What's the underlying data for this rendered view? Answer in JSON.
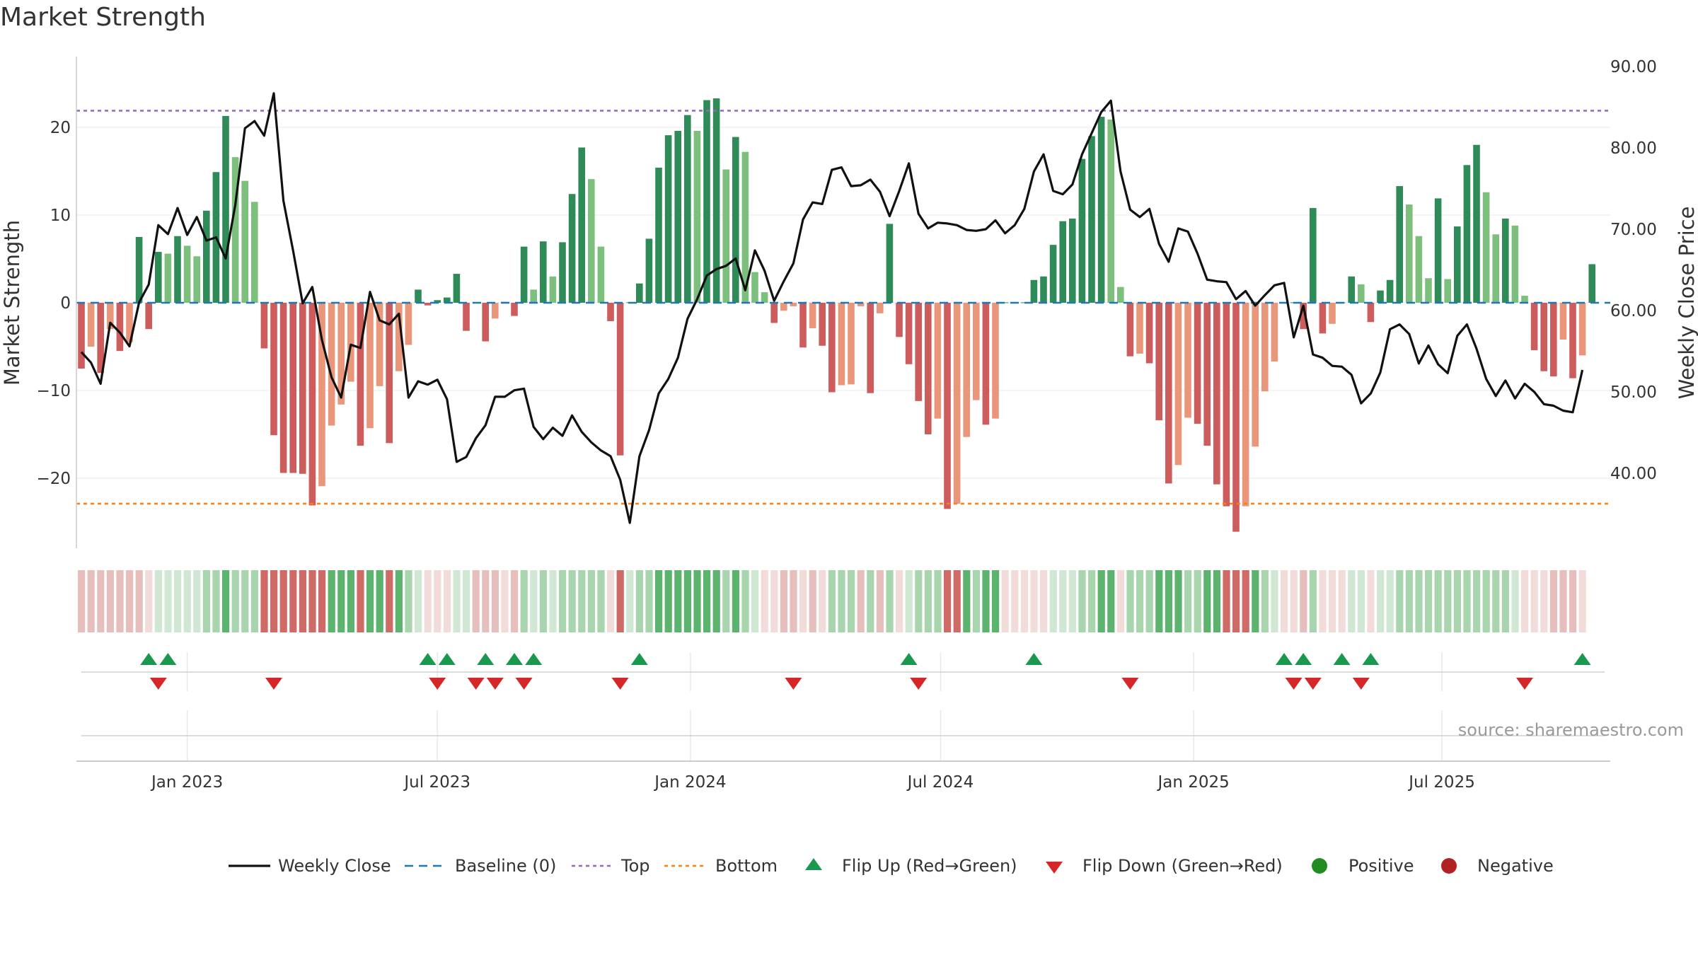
{
  "title": "Market Strength",
  "source": "source: sharemaestro.com",
  "colors": {
    "strong_green": "#2e8b57",
    "light_green": "#7dbf7d",
    "strong_red": "#cd5c5c",
    "light_red": "#e9967a",
    "price_line": "#111111",
    "baseline": "#1f77b4",
    "top_line": "#9467bd",
    "bottom_line": "#ff7f0e",
    "flip_up": "#1a9850",
    "flip_down": "#d62728",
    "positive": "#228b22",
    "negative": "#b22222",
    "grid": "#e8e8e8"
  },
  "chart_data": {
    "type": "bar",
    "title": "Market Strength",
    "ylabel_left": "Market Strength",
    "ylabel_right": "Weekly Close Price",
    "ylim_left": [
      -28,
      28
    ],
    "ylim_right": [
      29.6,
      92.6
    ],
    "left_ticks": [
      "20",
      "10",
      "0",
      "−10",
      "−20"
    ],
    "left_tick_values": [
      20,
      10,
      0,
      -10,
      -20
    ],
    "right_ticks": [
      "90.00",
      "80.00",
      "70.00",
      "60.00",
      "50.00",
      "40.00"
    ],
    "right_tick_values": [
      90,
      80,
      70,
      60,
      50,
      40
    ],
    "x_tick_labels": [
      "Jan 2023",
      "Jul 2023",
      "Jan 2024",
      "Jul 2024",
      "Jan 2025",
      "Jul 2025"
    ],
    "x_tick_week_index": [
      11.0,
      37.0,
      63.3,
      89.3,
      115.6,
      141.4
    ],
    "top_level": 21.9,
    "bottom_level": -22.9,
    "strength": [
      -7.5,
      -5,
      -8,
      -3,
      -5.5,
      -4.5,
      7.5,
      -3,
      5.8,
      5.6,
      7.6,
      6.5,
      5.3,
      10.5,
      14.9,
      21.3,
      16.6,
      13.9,
      11.5,
      -5.2,
      -15.1,
      -19.4,
      -19.4,
      -19.5,
      -23.1,
      -20.9,
      -14,
      -11.6,
      -9,
      -16.3,
      -14.3,
      -9.5,
      -16,
      -7.8,
      -4.8,
      1.5,
      -0.3,
      0.3,
      0.6,
      3.3,
      -3.2,
      0.05,
      -4.4,
      -1.8,
      0.1,
      -1.5,
      6.4,
      1.5,
      7,
      3,
      6.9,
      12.4,
      17.7,
      14.1,
      6.4,
      -2.1,
      -17.4,
      0.05,
      2.2,
      7.3,
      15.4,
      19.1,
      19.6,
      21.4,
      19.6,
      23.1,
      23.3,
      15.2,
      18.9,
      17.2,
      3.5,
      1.2,
      -2.3,
      -0.9,
      -0.4,
      -5.1,
      -2.9,
      -4.9,
      -10.2,
      -9.4,
      -9.3,
      -0.4,
      -10.3,
      -1.2,
      9,
      -3.9,
      -7,
      -11.2,
      -15,
      -13.2,
      -23.5,
      -22.9,
      -15.3,
      -11.1,
      -13.9,
      -13.2,
      0.05,
      0.05,
      0.05,
      2.6,
      3,
      6.6,
      9.3,
      9.6,
      16.4,
      19,
      21.2,
      20.9,
      1.8,
      -6.1,
      -5.8,
      -6.9,
      -13.4,
      -20.6,
      -18.5,
      -13.1,
      -13.8,
      -16.3,
      -20.7,
      -23.2,
      -26.1,
      -23.2,
      -16.4,
      -10.1,
      -6.7,
      0.05,
      0.05,
      -3,
      10.8,
      -3.5,
      -2.4,
      0.05,
      3,
      2.1,
      -2.2,
      1.4,
      2.6,
      13.3,
      11.2,
      7.6,
      2.8,
      11.9,
      2.7,
      8.7,
      15.7,
      18,
      12.6,
      7.8,
      9.6,
      8.8,
      0.8,
      -5.4,
      -7.8,
      -8.4,
      -4.2,
      -8.6,
      -6,
      4.4
    ],
    "weekly_close": [
      54.9,
      53.6,
      51,
      58.5,
      57.3,
      55.6,
      61,
      63.2,
      70.5,
      69.4,
      72.6,
      69.3,
      71.5,
      68.6,
      69,
      66.4,
      73,
      82.4,
      83.3,
      81.5,
      86.7,
      73.5,
      67.4,
      60.9,
      62.9,
      56.4,
      51.8,
      49.3,
      55.8,
      55.4,
      62.3,
      58.8,
      58.3,
      59.6,
      49.3,
      51.3,
      50.9,
      51.5,
      49.1,
      41.4,
      42,
      44.3,
      45.9,
      49.4,
      49.4,
      50.2,
      50.4,
      45.7,
      44.2,
      45.6,
      44.6,
      47.1,
      45.1,
      43.8,
      42.8,
      42.1,
      39.2,
      33.9,
      42.1,
      45.3,
      49.8,
      51.6,
      54.2,
      59,
      61.4,
      64.3,
      65.1,
      65.5,
      66.4,
      62.5,
      67.4,
      64.9,
      61.2,
      63.6,
      65.8,
      71.2,
      73.3,
      73.1,
      77.3,
      77.6,
      75.3,
      75.4,
      76.1,
      74.6,
      71.6,
      74.7,
      78.1,
      71.9,
      70.1,
      70.8,
      70.7,
      70.5,
      69.9,
      69.8,
      70,
      71.1,
      69.5,
      70.5,
      72.5,
      77.1,
      79.2,
      74.7,
      74.3,
      75.5,
      79.2,
      81.8,
      84.4,
      85.8,
      77.1,
      72.4,
      71.5,
      72.5,
      68.2,
      66,
      70.1,
      69.7,
      67,
      63.8,
      63.6,
      63.5,
      61.4,
      62.4,
      60.6,
      61.9,
      63.1,
      63.4,
      56.7,
      60.6,
      54.6,
      54.2,
      53.2,
      53.1,
      52.1,
      48.6,
      49.8,
      52.4,
      57.7,
      58.3,
      57.1,
      53.5,
      55.7,
      53.4,
      52.3,
      56.9,
      58.3,
      55.3,
      51.6,
      49.5,
      51.4,
      49.2,
      51,
      50,
      48.5,
      48.3,
      47.7,
      47.5,
      52.7
    ],
    "sentiment_shading": [
      1,
      1,
      1,
      1,
      1,
      1,
      1,
      2,
      3,
      3,
      3,
      3,
      3,
      4,
      4,
      5,
      4,
      4,
      4,
      6,
      6,
      6,
      6,
      6,
      6,
      6,
      5,
      5,
      5,
      6,
      5,
      5,
      6,
      5,
      4,
      3,
      2,
      2,
      2,
      3,
      3,
      1,
      1,
      1,
      2,
      1,
      4,
      3,
      4,
      3,
      4,
      4,
      4,
      4,
      4,
      2,
      6,
      3,
      4,
      4,
      5,
      5,
      5,
      5,
      5,
      5,
      5,
      4,
      5,
      4,
      3,
      2,
      2,
      1,
      1,
      2,
      1,
      2,
      4,
      4,
      4,
      1,
      4,
      1,
      4,
      2,
      3,
      4,
      4,
      4,
      6,
      6,
      5,
      4,
      5,
      5,
      2,
      2,
      2,
      2,
      2,
      3,
      3,
      3,
      4,
      4,
      5,
      5,
      2,
      4,
      4,
      4,
      5,
      5,
      5,
      4,
      4,
      5,
      5,
      6,
      6,
      6,
      5,
      4,
      3,
      2,
      2,
      1,
      4,
      2,
      2,
      2,
      3,
      3,
      2,
      3,
      3,
      4,
      4,
      4,
      4,
      4,
      4,
      4,
      4,
      4,
      4,
      4,
      4,
      3,
      2,
      2,
      2,
      1,
      1,
      1,
      2
    ],
    "flip_up_weeks": [
      7,
      9,
      36,
      38,
      42,
      45,
      47,
      58,
      86,
      99,
      125,
      127,
      131,
      134,
      156
    ],
    "flip_down_weeks": [
      8,
      20,
      37,
      41,
      43,
      46,
      56,
      74,
      87,
      109,
      126,
      128,
      133,
      150
    ],
    "legend": [
      "Weekly Close",
      "Baseline (0)",
      "Top",
      "Bottom",
      "Flip Up (Red→Green)",
      "Flip Down (Green→Red)",
      "Positive",
      "Negative"
    ]
  }
}
